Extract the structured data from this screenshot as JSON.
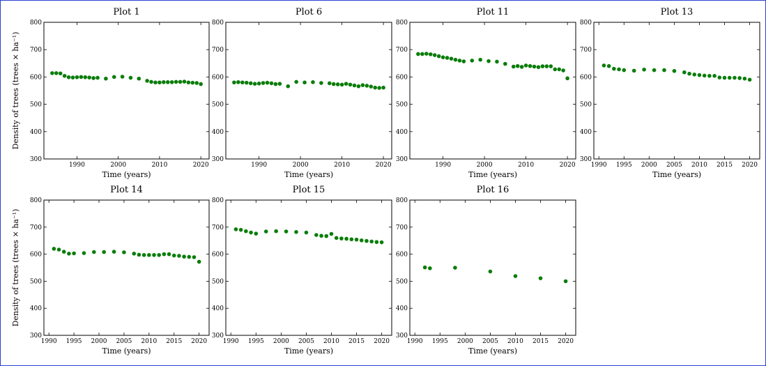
{
  "colors": {
    "marker": "#0a7d0a",
    "frame": "#2a3fd0",
    "axes": "#000000"
  },
  "chart_data": [
    {
      "type": "scatter",
      "title": "Plot 1",
      "xlabel": "Time (years)",
      "ylabel": "Density of trees (trees × ha⁻¹)",
      "xlim": [
        1982,
        2022
      ],
      "ylim": [
        300,
        800
      ],
      "xticks": [
        1990,
        2000,
        2010,
        2020
      ],
      "yticks": [
        300,
        400,
        500,
        600,
        700,
        800
      ],
      "series": [
        {
          "x": [
            1984,
            1985,
            1986,
            1987,
            1988,
            1989,
            1990,
            1991,
            1992,
            1993,
            1994,
            1995,
            1997,
            1999,
            2001,
            2003,
            2005,
            2007,
            2008,
            2009,
            2010,
            2011,
            2012,
            2013,
            2014,
            2015,
            2016,
            2017,
            2018,
            2019,
            2020
          ],
          "y": [
            614,
            614,
            613,
            604,
            599,
            598,
            599,
            600,
            599,
            598,
            596,
            597,
            594,
            600,
            601,
            597,
            594,
            586,
            582,
            580,
            580,
            581,
            581,
            581,
            582,
            582,
            583,
            580,
            579,
            578,
            574
          ]
        }
      ]
    },
    {
      "type": "scatter",
      "title": "Plot 6",
      "xlabel": "Time (years)",
      "ylabel": "",
      "xlim": [
        1982,
        2022
      ],
      "ylim": [
        300,
        800
      ],
      "xticks": [
        1990,
        2000,
        2010,
        2020
      ],
      "yticks": [
        300,
        400,
        500,
        600,
        700,
        800
      ],
      "series": [
        {
          "x": [
            1984,
            1985,
            1986,
            1987,
            1988,
            1989,
            1990,
            1991,
            1992,
            1993,
            1994,
            1995,
            1997,
            1999,
            2001,
            2003,
            2005,
            2007,
            2008,
            2009,
            2010,
            2011,
            2012,
            2013,
            2014,
            2015,
            2016,
            2017,
            2018,
            2019,
            2020
          ],
          "y": [
            580,
            581,
            580,
            579,
            577,
            575,
            576,
            578,
            579,
            577,
            574,
            575,
            566,
            582,
            580,
            581,
            578,
            577,
            574,
            573,
            572,
            575,
            572,
            569,
            566,
            570,
            568,
            565,
            561,
            560,
            561
          ]
        }
      ]
    },
    {
      "type": "scatter",
      "title": "Plot 11",
      "xlabel": "Time (years)",
      "ylabel": "",
      "xlim": [
        1982,
        2022
      ],
      "ylim": [
        300,
        800
      ],
      "xticks": [
        1990,
        2000,
        2010,
        2020
      ],
      "yticks": [
        300,
        400,
        500,
        600,
        700,
        800
      ],
      "series": [
        {
          "x": [
            1984,
            1985,
            1986,
            1987,
            1988,
            1989,
            1990,
            1991,
            1992,
            1993,
            1994,
            1995,
            1997,
            1999,
            2001,
            2003,
            2005,
            2007,
            2008,
            2009,
            2010,
            2011,
            2012,
            2013,
            2014,
            2015,
            2016,
            2017,
            2018,
            2019,
            2020
          ],
          "y": [
            684,
            684,
            685,
            683,
            680,
            676,
            672,
            670,
            667,
            663,
            660,
            657,
            660,
            663,
            658,
            656,
            648,
            638,
            640,
            637,
            642,
            640,
            638,
            636,
            639,
            639,
            639,
            628,
            628,
            624,
            595
          ]
        }
      ]
    },
    {
      "type": "scatter",
      "title": "Plot 13",
      "xlabel": "Time (years)",
      "ylabel": "",
      "xlim": [
        1989,
        2022
      ],
      "ylim": [
        300,
        800
      ],
      "xticks": [
        1990,
        1995,
        2000,
        2005,
        2010,
        2015,
        2020
      ],
      "yticks": [
        300,
        400,
        500,
        600,
        700,
        800
      ],
      "series": [
        {
          "x": [
            1991,
            1992,
            1993,
            1994,
            1995,
            1997,
            1999,
            2001,
            2003,
            2005,
            2007,
            2008,
            2009,
            2010,
            2011,
            2012,
            2013,
            2014,
            2015,
            2016,
            2017,
            2018,
            2019,
            2020
          ],
          "y": [
            642,
            640,
            630,
            628,
            625,
            623,
            627,
            625,
            625,
            622,
            617,
            612,
            609,
            607,
            605,
            604,
            604,
            598,
            597,
            597,
            597,
            596,
            594,
            590
          ]
        }
      ]
    },
    {
      "type": "scatter",
      "title": "Plot 14",
      "xlabel": "Time (years)",
      "ylabel": "Density of trees (trees × ha⁻¹)",
      "xlim": [
        1989,
        2022
      ],
      "ylim": [
        300,
        800
      ],
      "xticks": [
        1990,
        1995,
        2000,
        2005,
        2010,
        2015,
        2020
      ],
      "yticks": [
        300,
        400,
        500,
        600,
        700,
        800
      ],
      "series": [
        {
          "x": [
            1991,
            1992,
            1993,
            1994,
            1995,
            1997,
            1999,
            2001,
            2003,
            2005,
            2007,
            2008,
            2009,
            2010,
            2011,
            2012,
            2013,
            2014,
            2015,
            2016,
            2017,
            2018,
            2019,
            2020
          ],
          "y": [
            620,
            617,
            609,
            602,
            603,
            604,
            608,
            608,
            609,
            607,
            602,
            598,
            597,
            597,
            597,
            597,
            600,
            600,
            595,
            594,
            591,
            590,
            589,
            572
          ]
        }
      ]
    },
    {
      "type": "scatter",
      "title": "Plot 15",
      "xlabel": "Time (years)",
      "ylabel": "",
      "xlim": [
        1989,
        2022
      ],
      "ylim": [
        300,
        800
      ],
      "xticks": [
        1990,
        1995,
        2000,
        2005,
        2010,
        2015,
        2020
      ],
      "yticks": [
        300,
        400,
        500,
        600,
        700,
        800
      ],
      "series": [
        {
          "x": [
            1991,
            1992,
            1993,
            1994,
            1995,
            1997,
            1999,
            2001,
            2003,
            2005,
            2007,
            2008,
            2009,
            2010,
            2011,
            2012,
            2013,
            2014,
            2015,
            2016,
            2017,
            2018,
            2019,
            2020
          ],
          "y": [
            692,
            690,
            685,
            680,
            676,
            684,
            685,
            684,
            682,
            680,
            671,
            668,
            667,
            675,
            660,
            658,
            657,
            655,
            654,
            651,
            649,
            647,
            645,
            644
          ]
        }
      ]
    },
    {
      "type": "scatter",
      "title": "Plot 16",
      "xlabel": "Time (years)",
      "ylabel": "",
      "xlim": [
        1989,
        2022
      ],
      "ylim": [
        300,
        800
      ],
      "xticks": [
        1990,
        1995,
        2000,
        2005,
        2010,
        2015,
        2020
      ],
      "yticks": [
        300,
        400,
        500,
        600,
        700,
        800
      ],
      "series": [
        {
          "x": [
            1992,
            1993,
            1998,
            2005,
            2010,
            2015,
            2020
          ],
          "y": [
            551,
            548,
            550,
            536,
            519,
            511,
            500
          ]
        }
      ]
    }
  ]
}
